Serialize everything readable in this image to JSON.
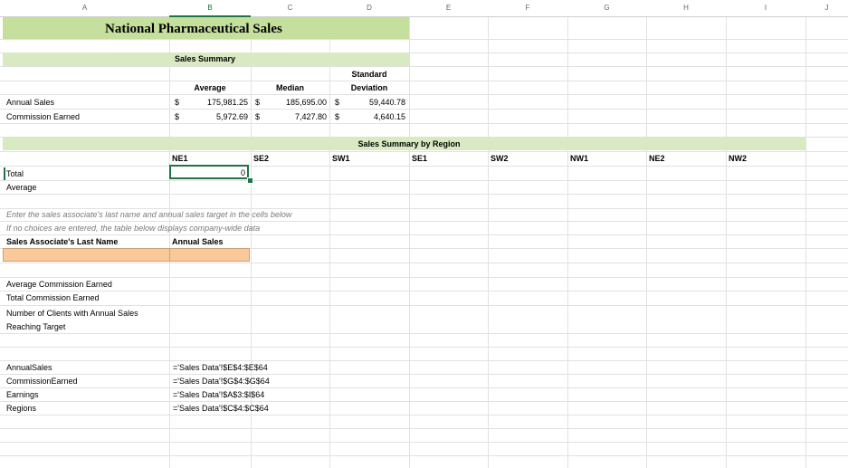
{
  "columns": [
    "A",
    "B",
    "C",
    "D",
    "E",
    "F",
    "G",
    "H",
    "I",
    "J"
  ],
  "title": "National Pharmaceutical Sales",
  "sales_summary": {
    "heading": "Sales Summary",
    "std_dev_line1": "Standard",
    "std_dev_line2": "Deviation",
    "average_label": "Average",
    "median_label": "Median",
    "rows": [
      {
        "label": "Annual Sales",
        "dollar": "$",
        "average": "175,981.25",
        "median": "185,695.00",
        "std": "59,440.78"
      },
      {
        "label": "Commission Earned",
        "dollar": "$",
        "average": "5,972.69",
        "median": "7,427.80",
        "std": "4,640.15"
      }
    ]
  },
  "region_summary": {
    "heading": "Sales Summary by Region",
    "regions": [
      "NE1",
      "SE2",
      "SW1",
      "SE1",
      "SW2",
      "NW1",
      "NE2",
      "NW2"
    ],
    "total_label": "Total",
    "average_label": "Average",
    "total_value": "0"
  },
  "instructions": {
    "line1": "Enter the sales associate's last name and annual sales target in the cells below",
    "line2": "If no choices are entered, the table below displays company-wide data",
    "col1": "Sales Associate's Last Name",
    "col2": "Annual Sales"
  },
  "stats": {
    "avg_commission": "Average Commission Earned",
    "total_commission": "Total Commission Earned",
    "clients_line1": "Number of Clients with Annual Sales",
    "clients_line2": "Reaching Target"
  },
  "named_ranges": [
    {
      "name": "AnnualSales",
      "ref": "='Sales Data'!$E$4:$E$64"
    },
    {
      "name": "CommissionEarned",
      "ref": "='Sales Data'!$G$4:$G$64"
    },
    {
      "name": "Earnings",
      "ref": "='Sales Data'!$A$3:$I$64"
    },
    {
      "name": "Regions",
      "ref": "='Sales Data'!$C$4:$C$64"
    }
  ],
  "colors": {
    "title_band": "#c5df9d",
    "summary_band": "#d9eac2",
    "input_fill": "#f9c99a",
    "selection": "#217346"
  }
}
